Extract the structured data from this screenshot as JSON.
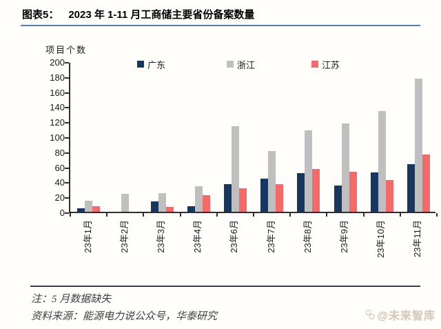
{
  "title": {
    "label": "图表5：",
    "text": "2023 年 1-11 月工商储主要省份备案数量"
  },
  "chart_data": {
    "type": "bar",
    "title": "2023 年 1-11 月工商储主要省份备案数量",
    "y_axis_title": "项目个数",
    "xlabel": "",
    "ylabel": "项目个数",
    "ylim": [
      0,
      200
    ],
    "ytick_step": 20,
    "grid": false,
    "legend_position": "top-inside",
    "categories": [
      "23年1月",
      "23年2月",
      "23年3月",
      "23年4月",
      "23年6月",
      "23年7月",
      "23年8月",
      "23年9月",
      "23年10月",
      "23年11月"
    ],
    "series": [
      {
        "name": "广东",
        "color": "#17375e",
        "values": [
          5,
          0,
          14,
          7,
          37,
          44,
          51,
          35,
          52,
          63
        ]
      },
      {
        "name": "浙江",
        "color": "#bfbfbf",
        "values": [
          15,
          24,
          25,
          34,
          114,
          81,
          108,
          117,
          134,
          177
        ]
      },
      {
        "name": "江苏",
        "color": "#f4696a",
        "values": [
          7,
          0,
          6,
          22,
          31,
          37,
          57,
          53,
          42,
          76
        ]
      }
    ]
  },
  "footer": {
    "note": "注：5 月数据缺失",
    "source": "资料来源：能源电力说公众号，华泰研究"
  },
  "watermark": {
    "text": "@未来智库"
  },
  "colors": {
    "title_underline": "#4a7ebb",
    "axis": "#2e2e2e",
    "footer_rule": "#33414f",
    "watermark": "#d7cec1",
    "background": "#fffefb"
  }
}
